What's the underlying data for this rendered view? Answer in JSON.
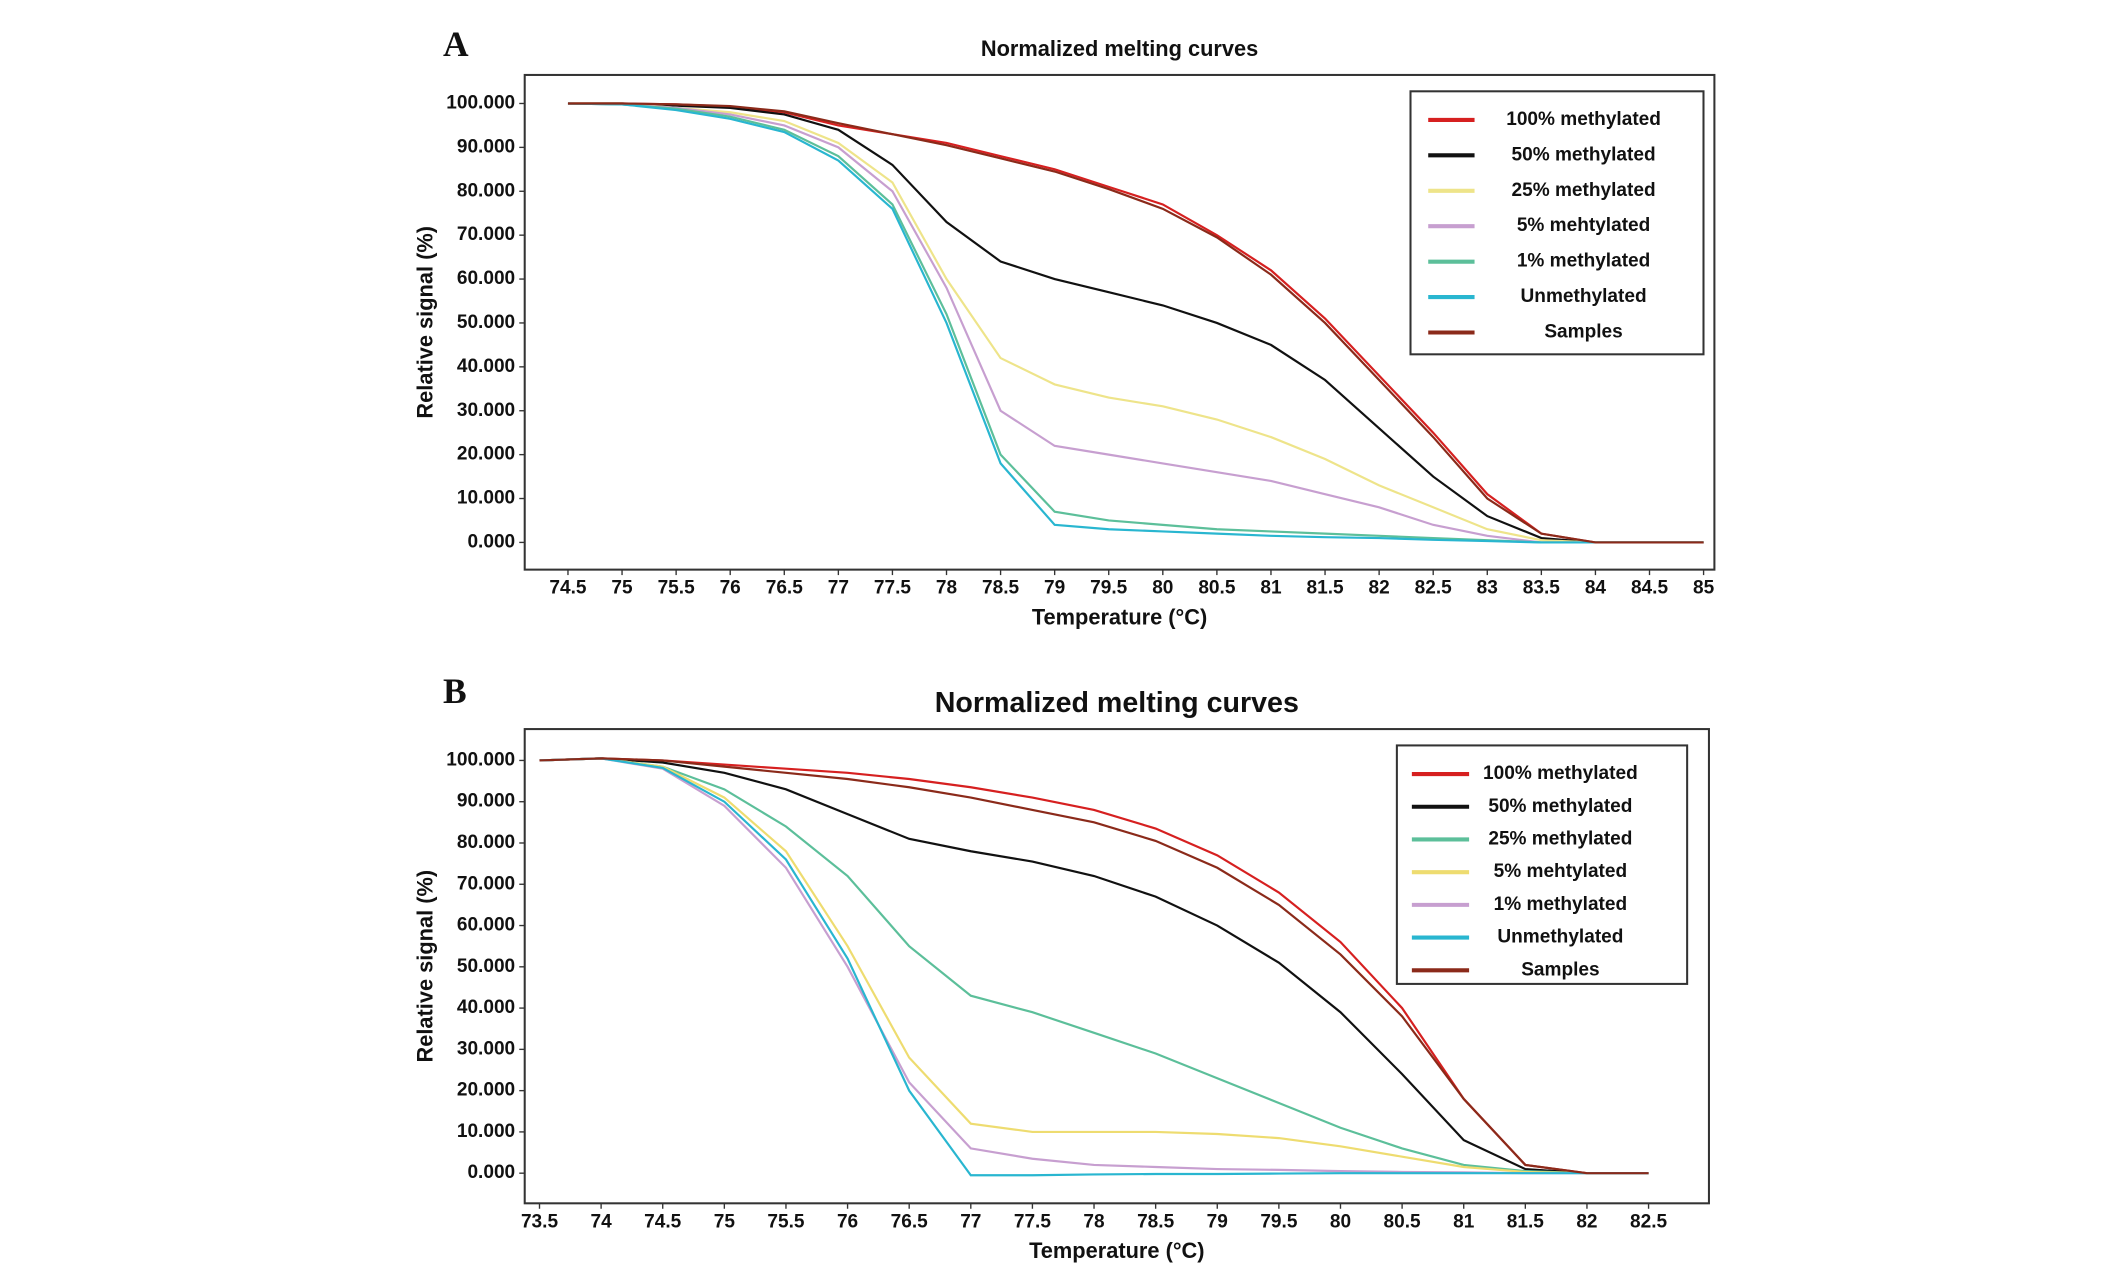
{
  "chart_data": [
    {
      "type": "line",
      "panel": "A",
      "title": "Normalized melting curves",
      "xlabel": "Temperature (°C)",
      "ylabel": "Relative signal (%)",
      "legend": "upper right",
      "x": [
        74.5,
        75,
        75.5,
        76,
        76.5,
        77,
        77.5,
        78,
        78.5,
        79,
        79.5,
        80,
        80.5,
        81,
        81.5,
        82,
        82.5,
        83,
        83.5,
        84,
        84.5,
        85
      ],
      "xlim": [
        74.1,
        85.1
      ],
      "xticks": [
        74.5,
        75,
        75.5,
        76,
        76.5,
        77,
        77.5,
        78,
        78.5,
        79,
        79.5,
        80,
        80.5,
        81,
        81.5,
        82,
        82.5,
        83,
        83.5,
        84,
        84.5,
        85
      ],
      "ylim": [
        -6.2,
        106.5
      ],
      "yticks": [
        {
          "value": 0,
          "label": "0.000"
        },
        {
          "value": 10,
          "label": "10.000"
        },
        {
          "value": 20,
          "label": "20.000"
        },
        {
          "value": 30,
          "label": "30.000"
        },
        {
          "value": 40,
          "label": "40.000"
        },
        {
          "value": 50,
          "label": "50.000"
        },
        {
          "value": 60,
          "label": "60.000"
        },
        {
          "value": 70,
          "label": "70.000"
        },
        {
          "value": 80,
          "label": "80.000"
        },
        {
          "value": 90,
          "label": "90.000"
        },
        {
          "value": 100,
          "label": "100.000"
        }
      ],
      "series": [
        {
          "name": "100% methylated",
          "color": "#d62020",
          "values": [
            100,
            100,
            99.8,
            99.3,
            98,
            95,
            93,
            91,
            88,
            85,
            81,
            77,
            70,
            62,
            51,
            38,
            25,
            11,
            2,
            0,
            0,
            0
          ]
        },
        {
          "name": "50% methylated",
          "color": "#111111",
          "values": [
            100,
            100,
            99.5,
            99,
            97.5,
            94,
            86,
            73,
            64,
            60,
            57,
            54,
            50,
            45,
            37,
            26,
            15,
            6,
            1,
            0,
            0,
            0
          ]
        },
        {
          "name": "25% methylated",
          "color": "#eee48a",
          "values": [
            100,
            100,
            99,
            98,
            96,
            91,
            82,
            60,
            42,
            36,
            33,
            31,
            28,
            24,
            19,
            13,
            8,
            3,
            0.5,
            0,
            0,
            0
          ]
        },
        {
          "name": "5% mehtylated",
          "color": "#c79fd0",
          "values": [
            100,
            99.8,
            99,
            97.5,
            95,
            90,
            80,
            58,
            30,
            22,
            20,
            18,
            16,
            14,
            11,
            8,
            4,
            1.5,
            0,
            0,
            0,
            0
          ]
        },
        {
          "name": "1% methylated",
          "color": "#5cbf9a",
          "values": [
            100,
            99.8,
            98.8,
            97,
            94,
            88,
            77,
            52,
            20,
            7,
            5,
            4,
            3,
            2.5,
            2,
            1.5,
            1,
            0.5,
            0,
            0,
            0,
            0
          ]
        },
        {
          "name": "Unmethylated",
          "color": "#29b6d0",
          "values": [
            100,
            99.8,
            98.5,
            96.5,
            93.5,
            87,
            76,
            50,
            18,
            4,
            3,
            2.5,
            2,
            1.5,
            1.2,
            1,
            0.6,
            0.3,
            0,
            0,
            0,
            0
          ]
        },
        {
          "name": "Samples",
          "color": "#8b2a1a",
          "values": [
            100,
            100,
            99.8,
            99.4,
            98.2,
            95.5,
            93,
            90.5,
            87.5,
            84.5,
            80.5,
            76,
            69.5,
            61,
            50,
            37,
            24,
            10,
            2,
            0,
            0,
            0
          ]
        }
      ]
    },
    {
      "type": "line",
      "panel": "B",
      "title": "Normalized melting curves",
      "xlabel": "Temperature (°C)",
      "ylabel": "Relative signal (%)",
      "legend": "upper right",
      "x": [
        73.5,
        74,
        74.5,
        75,
        75.5,
        76,
        76.5,
        77,
        77.5,
        78,
        78.5,
        79,
        79.5,
        80,
        80.5,
        81,
        81.5,
        82,
        82.5
      ],
      "xlim": [
        73.38,
        82.99
      ],
      "xticks": [
        73.5,
        74,
        74.5,
        75,
        75.5,
        76,
        76.5,
        77,
        77.5,
        78,
        78.5,
        79,
        79.5,
        80,
        80.5,
        81,
        81.5,
        82,
        82.5
      ],
      "ylim": [
        -7.3,
        107.6
      ],
      "yticks": [
        {
          "value": 0,
          "label": "0.000"
        },
        {
          "value": 10,
          "label": "10.000"
        },
        {
          "value": 20,
          "label": "20.000"
        },
        {
          "value": 30,
          "label": "30.000"
        },
        {
          "value": 40,
          "label": "40.000"
        },
        {
          "value": 50,
          "label": "50.000"
        },
        {
          "value": 60,
          "label": "60.000"
        },
        {
          "value": 70,
          "label": "70.000"
        },
        {
          "value": 80,
          "label": "80.000"
        },
        {
          "value": 90,
          "label": "90.000"
        },
        {
          "value": 100,
          "label": "100.000"
        }
      ],
      "series": [
        {
          "name": "100% methylated",
          "color": "#d62020",
          "values": [
            100,
            100.5,
            100,
            99,
            98,
            97,
            95.5,
            93.5,
            91,
            88,
            83.5,
            77,
            68,
            56,
            40,
            18,
            2,
            0,
            0
          ]
        },
        {
          "name": "50% methylated",
          "color": "#111111",
          "values": [
            100,
            100.5,
            99.5,
            97,
            93,
            87,
            81,
            78,
            75.5,
            72,
            67,
            60,
            51,
            39,
            24,
            8,
            1,
            0,
            0
          ]
        },
        {
          "name": "25% methylated",
          "color": "#5cbf9a",
          "values": [
            100,
            100.5,
            98.5,
            93,
            84,
            72,
            55,
            43,
            39,
            34,
            29,
            23,
            17,
            11,
            6,
            2,
            0.5,
            0,
            0
          ]
        },
        {
          "name": "5% mehtylated",
          "color": "#eedc70",
          "values": [
            100,
            100.5,
            98.5,
            91,
            78,
            55,
            28,
            12,
            10,
            10,
            10,
            9.5,
            8.5,
            6.5,
            4,
            1.5,
            0.3,
            0,
            0
          ]
        },
        {
          "name": "1% methylated",
          "color": "#c79fd0",
          "values": [
            100,
            100.5,
            98,
            89,
            74,
            50,
            22,
            6,
            3.5,
            2,
            1.5,
            1,
            0.8,
            0.5,
            0.3,
            0.2,
            0,
            0,
            0
          ]
        },
        {
          "name": "Unmethylated",
          "color": "#29b6d0",
          "values": [
            100,
            100.5,
            98.2,
            90,
            76,
            52,
            20,
            -0.5,
            -0.5,
            -0.3,
            -0.2,
            -0.2,
            -0.1,
            0,
            0,
            0,
            0,
            0,
            0
          ]
        },
        {
          "name": "Samples",
          "color": "#8b2a1a",
          "values": [
            100,
            100.5,
            100,
            98.5,
            97,
            95.5,
            93.5,
            91,
            88,
            85,
            80.5,
            74,
            65,
            53,
            38,
            18,
            2,
            0,
            0
          ]
        }
      ]
    }
  ]
}
